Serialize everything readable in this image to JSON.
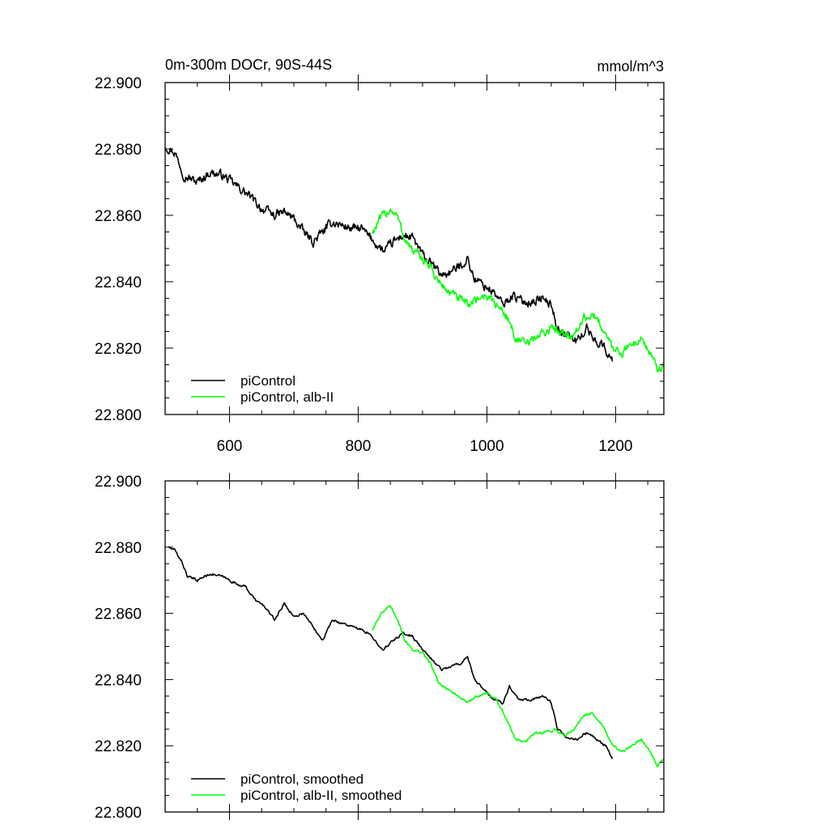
{
  "chart_data": [
    {
      "type": "line",
      "title": "0m-300m DOCr, 90S-44S",
      "units": "mmol/m^3",
      "xlim": [
        500,
        1275
      ],
      "ylim": [
        22.8,
        22.9
      ],
      "x_ticks": [
        600,
        800,
        1000,
        1200
      ],
      "y_ticks": [
        22.8,
        22.82,
        22.84,
        22.86,
        22.88,
        22.9
      ],
      "x_tick_labels": [
        "600",
        "800",
        "1000",
        "1200"
      ],
      "y_tick_labels": [
        "22.800",
        "22.820",
        "22.840",
        "22.860",
        "22.880",
        "22.900"
      ],
      "grid": false,
      "legend_position": "bottom-left",
      "series": [
        {
          "name": "piControl",
          "color": "#000000",
          "noise": 0.0022,
          "points": [
            [
              500,
              22.881
            ],
            [
              515,
              22.879
            ],
            [
              530,
              22.872
            ],
            [
              550,
              22.87
            ],
            [
              570,
              22.873
            ],
            [
              590,
              22.872
            ],
            [
              610,
              22.869
            ],
            [
              630,
              22.866
            ],
            [
              650,
              22.862
            ],
            [
              670,
              22.86
            ],
            [
              685,
              22.861
            ],
            [
              700,
              22.859
            ],
            [
              715,
              22.855
            ],
            [
              730,
              22.852
            ],
            [
              745,
              22.855
            ],
            [
              760,
              22.858
            ],
            [
              775,
              22.857
            ],
            [
              790,
              22.856
            ],
            [
              805,
              22.856
            ],
            [
              815,
              22.854
            ],
            [
              825,
              22.852
            ],
            [
              840,
              22.849
            ],
            [
              855,
              22.852
            ],
            [
              870,
              22.854
            ],
            [
              885,
              22.853
            ],
            [
              900,
              22.848
            ],
            [
              915,
              22.845
            ],
            [
              930,
              22.842
            ],
            [
              945,
              22.843
            ],
            [
              960,
              22.845
            ],
            [
              970,
              22.847
            ],
            [
              980,
              22.841
            ],
            [
              995,
              22.839
            ],
            [
              1010,
              22.837
            ],
            [
              1025,
              22.833
            ],
            [
              1040,
              22.836
            ],
            [
              1055,
              22.834
            ],
            [
              1070,
              22.834
            ],
            [
              1085,
              22.835
            ],
            [
              1100,
              22.833
            ],
            [
              1110,
              22.826
            ],
            [
              1125,
              22.824
            ],
            [
              1140,
              22.822
            ],
            [
              1155,
              22.826
            ],
            [
              1170,
              22.822
            ],
            [
              1180,
              22.821
            ],
            [
              1195,
              22.816
            ]
          ]
        },
        {
          "name": "piControl, alb-II",
          "color": "#00ff00",
          "noise": 0.0022,
          "points": [
            [
              822,
              22.855
            ],
            [
              835,
              22.859
            ],
            [
              850,
              22.862
            ],
            [
              860,
              22.86
            ],
            [
              870,
              22.854
            ],
            [
              885,
              22.849
            ],
            [
              900,
              22.847
            ],
            [
              910,
              22.845
            ],
            [
              925,
              22.84
            ],
            [
              940,
              22.837
            ],
            [
              955,
              22.835
            ],
            [
              970,
              22.833
            ],
            [
              985,
              22.835
            ],
            [
              1000,
              22.836
            ],
            [
              1015,
              22.833
            ],
            [
              1030,
              22.83
            ],
            [
              1045,
              22.823
            ],
            [
              1060,
              22.821
            ],
            [
              1075,
              22.823
            ],
            [
              1090,
              22.825
            ],
            [
              1105,
              22.826
            ],
            [
              1120,
              22.825
            ],
            [
              1135,
              22.823
            ],
            [
              1150,
              22.829
            ],
            [
              1165,
              22.83
            ],
            [
              1180,
              22.826
            ],
            [
              1195,
              22.82
            ],
            [
              1210,
              22.819
            ],
            [
              1225,
              22.821
            ],
            [
              1240,
              22.823
            ],
            [
              1255,
              22.818
            ],
            [
              1265,
              22.813
            ],
            [
              1275,
              22.816
            ]
          ]
        }
      ]
    },
    {
      "type": "line",
      "title": "",
      "xlim": [
        500,
        1275
      ],
      "ylim": [
        22.8,
        22.9
      ],
      "x_ticks": [
        600,
        800,
        1000,
        1200
      ],
      "y_ticks": [
        22.8,
        22.82,
        22.84,
        22.86,
        22.88,
        22.9
      ],
      "y_tick_labels": [
        "22.800",
        "22.820",
        "22.840",
        "22.860",
        "22.880",
        "22.900"
      ],
      "grid": false,
      "legend_position": "bottom-left",
      "series": [
        {
          "name": "piControl, smoothed",
          "color": "#000000",
          "noise": 0.0006,
          "points": [
            [
              505,
              22.88
            ],
            [
              515,
              22.879
            ],
            [
              525,
              22.876
            ],
            [
              535,
              22.871
            ],
            [
              550,
              22.87
            ],
            [
              570,
              22.872
            ],
            [
              590,
              22.871
            ],
            [
              610,
              22.869
            ],
            [
              625,
              22.868
            ],
            [
              640,
              22.864
            ],
            [
              655,
              22.862
            ],
            [
              670,
              22.858
            ],
            [
              685,
              22.863
            ],
            [
              700,
              22.859
            ],
            [
              715,
              22.86
            ],
            [
              730,
              22.856
            ],
            [
              745,
              22.852
            ],
            [
              760,
              22.858
            ],
            [
              775,
              22.857
            ],
            [
              790,
              22.856
            ],
            [
              805,
              22.855
            ],
            [
              815,
              22.854
            ],
            [
              825,
              22.852
            ],
            [
              840,
              22.849
            ],
            [
              855,
              22.852
            ],
            [
              870,
              22.854
            ],
            [
              885,
              22.853
            ],
            [
              900,
              22.849
            ],
            [
              915,
              22.846
            ],
            [
              930,
              22.843
            ],
            [
              945,
              22.844
            ],
            [
              960,
              22.845
            ],
            [
              970,
              22.847
            ],
            [
              980,
              22.84
            ],
            [
              995,
              22.837
            ],
            [
              1010,
              22.834
            ],
            [
              1025,
              22.833
            ],
            [
              1035,
              22.838
            ],
            [
              1050,
              22.834
            ],
            [
              1070,
              22.834
            ],
            [
              1090,
              22.835
            ],
            [
              1100,
              22.833
            ],
            [
              1110,
              22.825
            ],
            [
              1125,
              22.822
            ],
            [
              1140,
              22.822
            ],
            [
              1155,
              22.824
            ],
            [
              1170,
              22.822
            ],
            [
              1185,
              22.82
            ],
            [
              1195,
              22.816
            ]
          ]
        },
        {
          "name": "piControl, alb-II, smoothed",
          "color": "#00ff00",
          "noise": 0.0006,
          "points": [
            [
              822,
              22.855
            ],
            [
              835,
              22.86
            ],
            [
              850,
              22.862
            ],
            [
              862,
              22.858
            ],
            [
              872,
              22.852
            ],
            [
              885,
              22.849
            ],
            [
              900,
              22.848
            ],
            [
              912,
              22.845
            ],
            [
              925,
              22.839
            ],
            [
              940,
              22.837
            ],
            [
              955,
              22.835
            ],
            [
              970,
              22.833
            ],
            [
              985,
              22.835
            ],
            [
              1000,
              22.836
            ],
            [
              1015,
              22.834
            ],
            [
              1030,
              22.828
            ],
            [
              1045,
              22.822
            ],
            [
              1060,
              22.821
            ],
            [
              1075,
              22.824
            ],
            [
              1090,
              22.824
            ],
            [
              1105,
              22.825
            ],
            [
              1120,
              22.823
            ],
            [
              1135,
              22.825
            ],
            [
              1150,
              22.829
            ],
            [
              1165,
              22.83
            ],
            [
              1180,
              22.826
            ],
            [
              1195,
              22.82
            ],
            [
              1210,
              22.818
            ],
            [
              1225,
              22.82
            ],
            [
              1240,
              22.822
            ],
            [
              1255,
              22.818
            ],
            [
              1265,
              22.814
            ],
            [
              1275,
              22.816
            ]
          ]
        }
      ]
    }
  ]
}
